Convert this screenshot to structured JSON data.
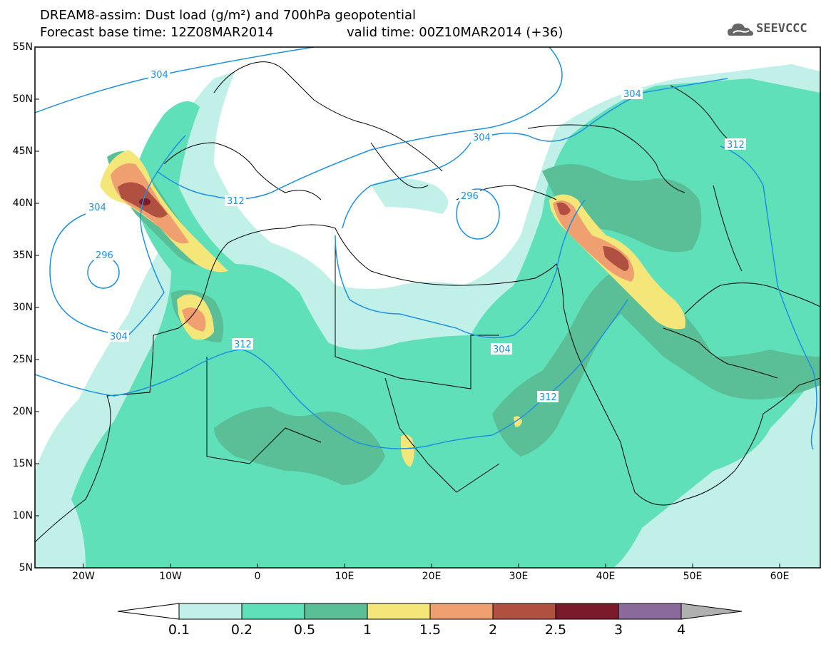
{
  "title": {
    "line1": "DREAM8-assim: Dust load (g/m²) and 700hPa geopotential",
    "line2": "Forecast base time: 12Z08MAR2014",
    "valid": "valid time: 00Z10MAR2014 (+36)"
  },
  "logo": {
    "text": "SEEVCCC",
    "icon": "cloud-icon"
  },
  "lat_labels": [
    "55N",
    "50N",
    "45N",
    "40N",
    "35N",
    "30N",
    "25N",
    "20N",
    "15N",
    "10N",
    "5N"
  ],
  "lon_labels": [
    "20W",
    "10W",
    "0",
    "10E",
    "20E",
    "30E",
    "40E",
    "50E",
    "60E"
  ],
  "contour_labels": [
    "304",
    "312",
    "304",
    "296",
    "304",
    "312",
    "304",
    "304",
    "312",
    "312",
    "296",
    "304"
  ],
  "colorbar": {
    "labels": [
      "0.1",
      "0.2",
      "0.5",
      "1",
      "1.5",
      "2",
      "2.5",
      "3",
      "4"
    ],
    "colors": [
      "#c0f0e8",
      "#5fe0b8",
      "#5abf96",
      "#f5e67a",
      "#f0a070",
      "#b05040",
      "#7a1a2a",
      "#8a6a9a",
      "#b0b0b0"
    ]
  },
  "colors": {
    "contour": "#1e90e0",
    "coast": "#000000"
  }
}
